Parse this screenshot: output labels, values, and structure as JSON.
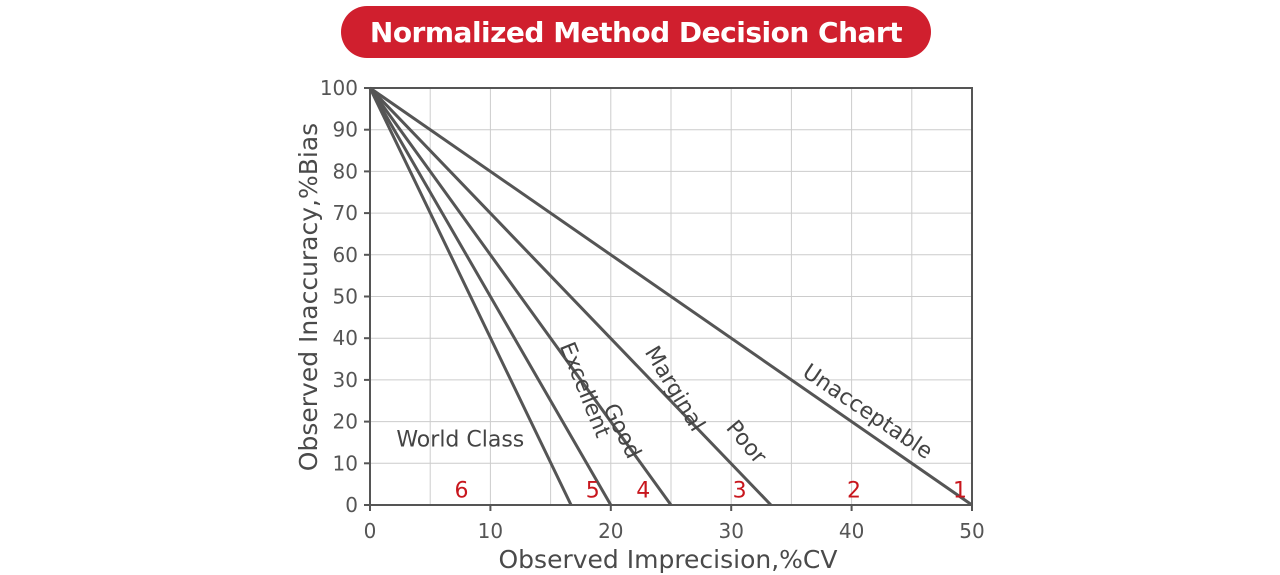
{
  "header": {
    "title": "Normalized Method Decision Chart"
  },
  "colors": {
    "accent": "#d01f2e",
    "line": "#555555",
    "grid": "#cccccc",
    "sigma_text": "#c8161d"
  },
  "chart_data": {
    "type": "line",
    "title": "Normalized Method Decision Chart",
    "xlabel": "Observed Imprecision,%CV",
    "ylabel": "Observed Inaccuracy,%Bias",
    "xlim": [
      0,
      50
    ],
    "ylim": [
      0,
      100
    ],
    "x_ticks": [
      0,
      10,
      20,
      30,
      40,
      50
    ],
    "y_ticks": [
      0,
      10,
      20,
      30,
      40,
      50,
      60,
      70,
      80,
      90,
      100
    ],
    "grid": true,
    "series": [
      {
        "name": "Unacceptable",
        "x": [
          0,
          50
        ],
        "y": [
          100,
          0
        ]
      },
      {
        "name": "Poor",
        "x": [
          0,
          33.3
        ],
        "y": [
          100,
          0
        ]
      },
      {
        "name": "Marginal",
        "x": [
          0,
          25
        ],
        "y": [
          100,
          0
        ]
      },
      {
        "name": "Good",
        "x": [
          0,
          20
        ],
        "y": [
          100,
          0
        ]
      },
      {
        "name": "Excellent",
        "x": [
          0,
          16.7
        ],
        "y": [
          100,
          0
        ]
      }
    ],
    "zone_labels": [
      {
        "text": "Unacceptable",
        "x": 41,
        "y": 21,
        "angle_deg": 34
      },
      {
        "text": "Poor",
        "x": 30.8,
        "y": 14,
        "angle_deg": 50
      },
      {
        "text": "Marginal",
        "x": 24.8,
        "y": 27,
        "angle_deg": 59
      },
      {
        "text": "Good",
        "x": 20.4,
        "y": 17,
        "angle_deg": 64
      },
      {
        "text": "Excellent",
        "x": 17.3,
        "y": 27,
        "angle_deg": 68
      },
      {
        "text": "World Class",
        "x": 7.5,
        "y": 14,
        "angle_deg": 0
      }
    ],
    "sigma_labels": [
      {
        "text": "1",
        "x": 49.0,
        "y": 3
      },
      {
        "text": "2",
        "x": 40.2,
        "y": 3
      },
      {
        "text": "3",
        "x": 30.7,
        "y": 3
      },
      {
        "text": "4",
        "x": 22.7,
        "y": 3
      },
      {
        "text": "5",
        "x": 18.5,
        "y": 3
      },
      {
        "text": "6",
        "x": 7.6,
        "y": 3
      }
    ]
  }
}
